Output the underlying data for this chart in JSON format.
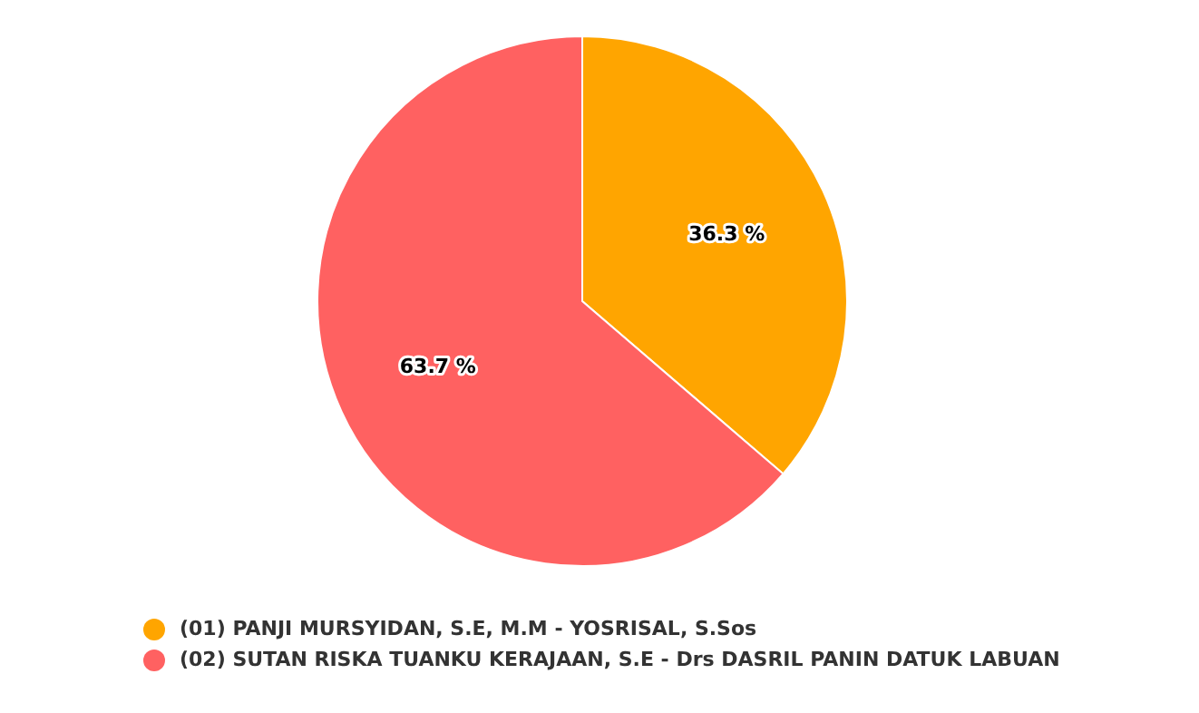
{
  "chart_data": {
    "type": "pie",
    "categories": [
      "(01) PANJI MURSYIDAN, S.E, M.M - YOSRISAL, S.Sos",
      "(02) SUTAN RISKA TUANKU KERAJAAN, S.E - Drs DASRIL PANIN DATUK LABUAN"
    ],
    "values": [
      36.3,
      63.7
    ],
    "colors": [
      "#ffa500",
      "#ff6161"
    ],
    "value_labels": [
      "36.3 %",
      "63.7 %"
    ],
    "legend": "bottom left"
  }
}
